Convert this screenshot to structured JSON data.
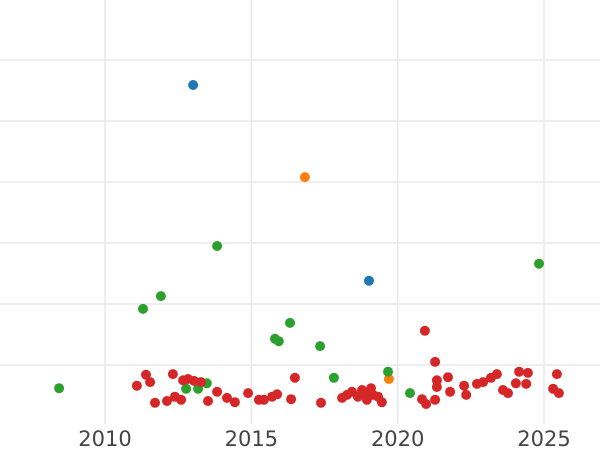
{
  "chart_data": {
    "type": "scatter",
    "title": "",
    "xlabel": "",
    "ylabel": "",
    "x_ticks": [
      2010,
      2015,
      2020,
      2025
    ],
    "x_tick_labels": [
      "2010",
      "2015",
      "2020",
      "2025"
    ],
    "x_range": [
      2006.4,
      2026.9
    ],
    "y_range": [
      0,
      6.98
    ],
    "y_gridlines": [
      1,
      2,
      3,
      4,
      5,
      6
    ],
    "y_unit": "gridline_index",
    "grid": true,
    "legend_position": "none",
    "marker": "circle",
    "colors": {
      "blue": "#1f77b4",
      "orange": "#ff7f0e",
      "green": "#2ca02c",
      "red": "#d62728",
      "gridline": "#e8e8e8",
      "tick_text": "#444444",
      "background": "#ffffff"
    },
    "series": [
      {
        "name": "blue",
        "color": "#1f77b4",
        "points": [
          {
            "x": 2013.01,
            "y": 5.59
          },
          {
            "x": 2019.02,
            "y": 2.38
          }
        ]
      },
      {
        "name": "orange",
        "color": "#ff7f0e",
        "points": [
          {
            "x": 2016.83,
            "y": 4.08
          },
          {
            "x": 2019.7,
            "y": 0.77
          }
        ]
      },
      {
        "name": "green",
        "color": "#2ca02c",
        "points": [
          {
            "x": 2008.43,
            "y": 0.62
          },
          {
            "x": 2011.3,
            "y": 1.92
          },
          {
            "x": 2011.91,
            "y": 2.13
          },
          {
            "x": 2012.77,
            "y": 0.61
          },
          {
            "x": 2013.18,
            "y": 0.61
          },
          {
            "x": 2013.48,
            "y": 0.7
          },
          {
            "x": 2013.83,
            "y": 2.95
          },
          {
            "x": 2015.81,
            "y": 1.43
          },
          {
            "x": 2015.94,
            "y": 1.39
          },
          {
            "x": 2016.32,
            "y": 1.69
          },
          {
            "x": 2017.35,
            "y": 1.31
          },
          {
            "x": 2017.82,
            "y": 0.79
          },
          {
            "x": 2019.67,
            "y": 0.89
          },
          {
            "x": 2020.42,
            "y": 0.54
          },
          {
            "x": 2024.83,
            "y": 2.66
          }
        ]
      },
      {
        "name": "red",
        "color": "#d62728",
        "points": [
          {
            "x": 2011.09,
            "y": 0.66
          },
          {
            "x": 2011.4,
            "y": 0.84
          },
          {
            "x": 2011.54,
            "y": 0.72
          },
          {
            "x": 2011.71,
            "y": 0.38
          },
          {
            "x": 2012.12,
            "y": 0.41
          },
          {
            "x": 2012.32,
            "y": 0.85
          },
          {
            "x": 2012.39,
            "y": 0.48
          },
          {
            "x": 2012.6,
            "y": 0.43
          },
          {
            "x": 2012.67,
            "y": 0.75
          },
          {
            "x": 2012.84,
            "y": 0.77
          },
          {
            "x": 2013.04,
            "y": 0.74
          },
          {
            "x": 2013.28,
            "y": 0.72
          },
          {
            "x": 2013.52,
            "y": 0.41
          },
          {
            "x": 2013.83,
            "y": 0.56
          },
          {
            "x": 2014.17,
            "y": 0.46
          },
          {
            "x": 2014.44,
            "y": 0.39
          },
          {
            "x": 2014.89,
            "y": 0.54
          },
          {
            "x": 2015.26,
            "y": 0.43
          },
          {
            "x": 2015.43,
            "y": 0.43
          },
          {
            "x": 2015.71,
            "y": 0.48
          },
          {
            "x": 2015.88,
            "y": 0.52
          },
          {
            "x": 2016.36,
            "y": 0.44
          },
          {
            "x": 2016.49,
            "y": 0.79
          },
          {
            "x": 2017.38,
            "y": 0.38
          },
          {
            "x": 2018.1,
            "y": 0.46
          },
          {
            "x": 2018.27,
            "y": 0.51
          },
          {
            "x": 2018.44,
            "y": 0.56
          },
          {
            "x": 2018.64,
            "y": 0.48
          },
          {
            "x": 2018.78,
            "y": 0.59
          },
          {
            "x": 2018.88,
            "y": 0.51
          },
          {
            "x": 2018.95,
            "y": 0.43
          },
          {
            "x": 2019.09,
            "y": 0.62
          },
          {
            "x": 2019.16,
            "y": 0.51
          },
          {
            "x": 2019.33,
            "y": 0.48
          },
          {
            "x": 2019.46,
            "y": 0.39
          },
          {
            "x": 2020.83,
            "y": 0.44
          },
          {
            "x": 2020.97,
            "y": 0.36
          },
          {
            "x": 2021.28,
            "y": 0.43
          },
          {
            "x": 2020.93,
            "y": 1.56
          },
          {
            "x": 2021.28,
            "y": 1.05
          },
          {
            "x": 2021.34,
            "y": 0.75
          },
          {
            "x": 2021.34,
            "y": 0.64
          },
          {
            "x": 2021.72,
            "y": 0.8
          },
          {
            "x": 2021.79,
            "y": 0.56
          },
          {
            "x": 2022.27,
            "y": 0.66
          },
          {
            "x": 2022.34,
            "y": 0.51
          },
          {
            "x": 2022.71,
            "y": 0.69
          },
          {
            "x": 2022.92,
            "y": 0.72
          },
          {
            "x": 2023.19,
            "y": 0.79
          },
          {
            "x": 2023.39,
            "y": 0.85
          },
          {
            "x": 2023.6,
            "y": 0.59
          },
          {
            "x": 2023.77,
            "y": 0.54
          },
          {
            "x": 2024.04,
            "y": 0.7
          },
          {
            "x": 2024.15,
            "y": 0.89
          },
          {
            "x": 2024.39,
            "y": 0.69
          },
          {
            "x": 2024.45,
            "y": 0.87
          },
          {
            "x": 2025.31,
            "y": 0.61
          },
          {
            "x": 2025.44,
            "y": 0.85
          },
          {
            "x": 2025.51,
            "y": 0.54
          }
        ]
      }
    ]
  }
}
